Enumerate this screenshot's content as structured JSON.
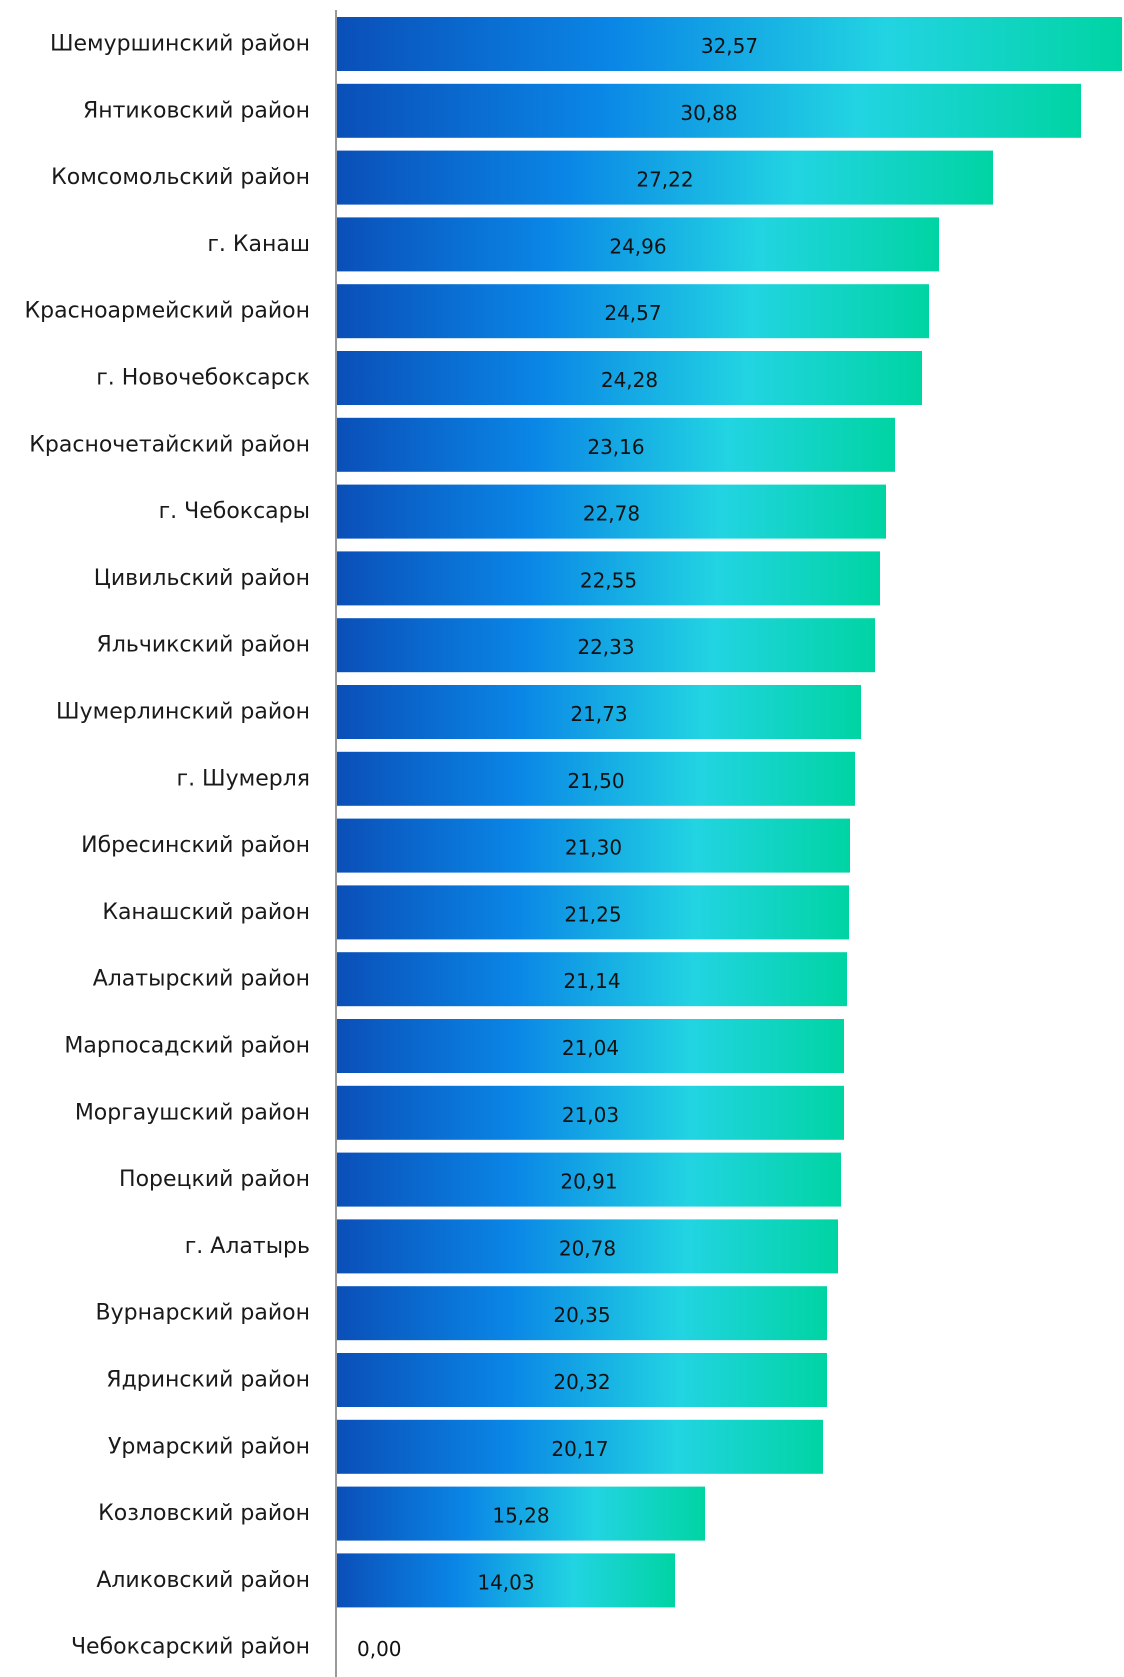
{
  "chart_data": {
    "type": "bar",
    "orientation": "horizontal",
    "title": "",
    "xlabel": "",
    "ylabel": "",
    "xlim": [
      0,
      32.57
    ],
    "grid": false,
    "legend": "none",
    "colors": {
      "bar_gradient": [
        "#0a4fb8",
        "#0a86e6",
        "#22d4e2",
        "#00d4a3"
      ],
      "axis": "#999999",
      "label_text": "#1a1a1a"
    },
    "categories": [
      "Шемуршинский район",
      "Янтиковский район",
      "Комсомольский район",
      "г. Канаш",
      "Красноармейский район",
      "г. Новочебоксарск",
      "Красночетайский район",
      "г. Чебоксары",
      "Цивильский район",
      "Яльчикский район",
      "Шумерлинский район",
      "г. Шумерля",
      "Ибресинский район",
      "Канашский район",
      "Алатырский район",
      "Марпосадский район",
      "Моргаушский район",
      "Порецкий район",
      "г. Алатырь",
      "Вурнарский район",
      "Ядринский район",
      "Урмарский район",
      "Козловский район",
      "Аликовский район",
      "Чебоксарский район"
    ],
    "values": [
      32.57,
      30.88,
      27.22,
      24.96,
      24.57,
      24.28,
      23.16,
      22.78,
      22.55,
      22.33,
      21.73,
      21.5,
      21.3,
      21.25,
      21.14,
      21.04,
      21.03,
      20.91,
      20.78,
      20.35,
      20.32,
      20.17,
      15.28,
      14.03,
      0.0
    ],
    "value_labels": [
      "32,57",
      "30,88",
      "27,22",
      "24,96",
      "24,57",
      "24,28",
      "23,16",
      "22,78",
      "22,55",
      "22,33",
      "21,73",
      "21,50",
      "21,30",
      "21,25",
      "21,14",
      "21,04",
      "21,03",
      "20,91",
      "20,78",
      "20,35",
      "20,32",
      "20,17",
      "15,28",
      "14,03",
      "0,00"
    ]
  }
}
